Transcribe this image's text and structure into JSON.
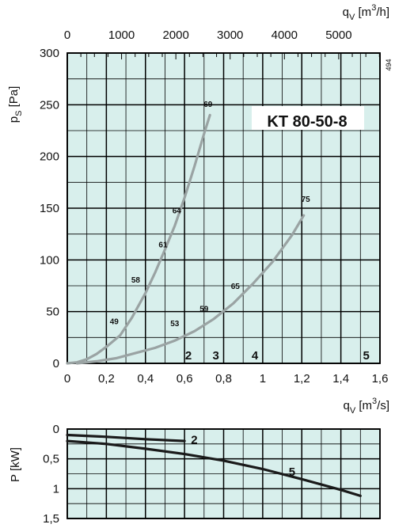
{
  "chart_data": [
    {
      "type": "line",
      "title": "KT  80-50-8",
      "side_code": "494",
      "xlabel": "q_V [m³/s]",
      "xlabel_parts": {
        "main": "q",
        "sub": "V",
        "unit_open": " [m",
        "sup": "3",
        "unit_close": "/s]"
      },
      "ylabel": "p_S [Pa]",
      "ylabel_parts": {
        "main": "p",
        "sub": "S",
        "unit": " [Pa]"
      },
      "top_axis_label": "q_V [m³/h]",
      "top_axis_parts": {
        "main": "q",
        "sub": "V",
        "unit_open": " [m",
        "sup": "3",
        "unit_close": "/h]"
      },
      "xlim": [
        0,
        1.6
      ],
      "ylim": [
        0,
        300
      ],
      "top_xlim": [
        0,
        5760
      ],
      "x_ticks": [
        {
          "value": 0,
          "label": "0"
        },
        {
          "value": 0.2,
          "label": "0,2"
        },
        {
          "value": 0.4,
          "label": "0,4"
        },
        {
          "value": 0.6,
          "label": "0,6"
        },
        {
          "value": 0.8,
          "label": "0,8"
        },
        {
          "value": 1.0,
          "label": "1"
        },
        {
          "value": 1.2,
          "label": "1,2"
        },
        {
          "value": 1.4,
          "label": "1,4"
        },
        {
          "value": 1.6,
          "label": "1,6"
        }
      ],
      "y_ticks": [
        {
          "value": 0,
          "label": "0"
        },
        {
          "value": 50,
          "label": "50"
        },
        {
          "value": 100,
          "label": "100"
        },
        {
          "value": 150,
          "label": "150"
        },
        {
          "value": 200,
          "label": "200"
        },
        {
          "value": 250,
          "label": "250"
        },
        {
          "value": 300,
          "label": "300"
        }
      ],
      "top_ticks": [
        {
          "value": 0,
          "label": "0"
        },
        {
          "value": 1000,
          "label": "1000"
        },
        {
          "value": 2000,
          "label": "2000"
        },
        {
          "value": 3000,
          "label": "3000"
        },
        {
          "value": 4000,
          "label": "4000"
        },
        {
          "value": 5000,
          "label": "5000"
        }
      ],
      "grid": true,
      "series": [
        {
          "color": "#9aa3a3",
          "x": [
            0.0,
            0.05,
            0.1,
            0.15,
            0.2,
            0.27,
            0.33,
            0.4,
            0.45,
            0.5,
            0.55,
            0.6,
            0.65,
            0.7,
            0.73
          ],
          "y": [
            0,
            1,
            4,
            9,
            16,
            27,
            44,
            68,
            88,
            110,
            133,
            160,
            190,
            222,
            240
          ],
          "efficiency_labels": [
            {
              "x": 0.24,
              "y": 38,
              "label": "49"
            },
            {
              "x": 0.35,
              "y": 78,
              "label": "58"
            },
            {
              "x": 0.49,
              "y": 112,
              "label": "61"
            },
            {
              "x": 0.56,
              "y": 145,
              "label": "64"
            },
            {
              "x": 0.72,
              "y": 248,
              "label": "69"
            }
          ]
        },
        {
          "color": "#9aa3a3",
          "x": [
            0.05,
            0.15,
            0.25,
            0.35,
            0.45,
            0.55,
            0.65,
            0.75,
            0.85,
            0.95,
            1.05,
            1.15,
            1.21
          ],
          "y": [
            0,
            2,
            5,
            10,
            15,
            22,
            31,
            43,
            58,
            77,
            98,
            124,
            143
          ],
          "efficiency_labels": [
            {
              "x": 0.55,
              "y": 36,
              "label": "53"
            },
            {
              "x": 0.7,
              "y": 50,
              "label": "59"
            },
            {
              "x": 0.86,
              "y": 72,
              "label": "65"
            },
            {
              "x": 1.22,
              "y": 156,
              "label": "75"
            }
          ]
        }
      ],
      "region_labels": [
        {
          "x": 0.62,
          "label": "2"
        },
        {
          "x": 0.76,
          "label": "3"
        },
        {
          "x": 0.96,
          "label": "4"
        },
        {
          "x": 1.53,
          "label": "5"
        }
      ]
    },
    {
      "type": "line",
      "ylabel": "P [kW]",
      "ylabel_parts": {
        "main": "P",
        "unit": " [kW]"
      },
      "xlim": [
        0,
        1.6
      ],
      "ylim": [
        0,
        1.5
      ],
      "y_inverted": true,
      "y_ticks": [
        {
          "value": 0,
          "label": "0"
        },
        {
          "value": 0.5,
          "label": "0,5"
        },
        {
          "value": 1.0,
          "label": "1"
        },
        {
          "value": 1.5,
          "label": "1,5"
        }
      ],
      "grid": true,
      "series": [
        {
          "label": "2",
          "color": "#1a1a1a",
          "x": [
            0.0,
            0.2,
            0.4,
            0.6
          ],
          "y": [
            0.1,
            0.13,
            0.17,
            0.2
          ],
          "label_at": {
            "x": 0.65,
            "y": 0.18
          }
        },
        {
          "label": "5",
          "color": "#1a1a1a",
          "x": [
            0.0,
            0.2,
            0.4,
            0.6,
            0.8,
            1.0,
            1.2,
            1.4,
            1.5
          ],
          "y": [
            0.2,
            0.25,
            0.33,
            0.42,
            0.53,
            0.67,
            0.84,
            1.02,
            1.12
          ],
          "label_at": {
            "x": 1.15,
            "y": 0.72
          }
        }
      ]
    }
  ]
}
